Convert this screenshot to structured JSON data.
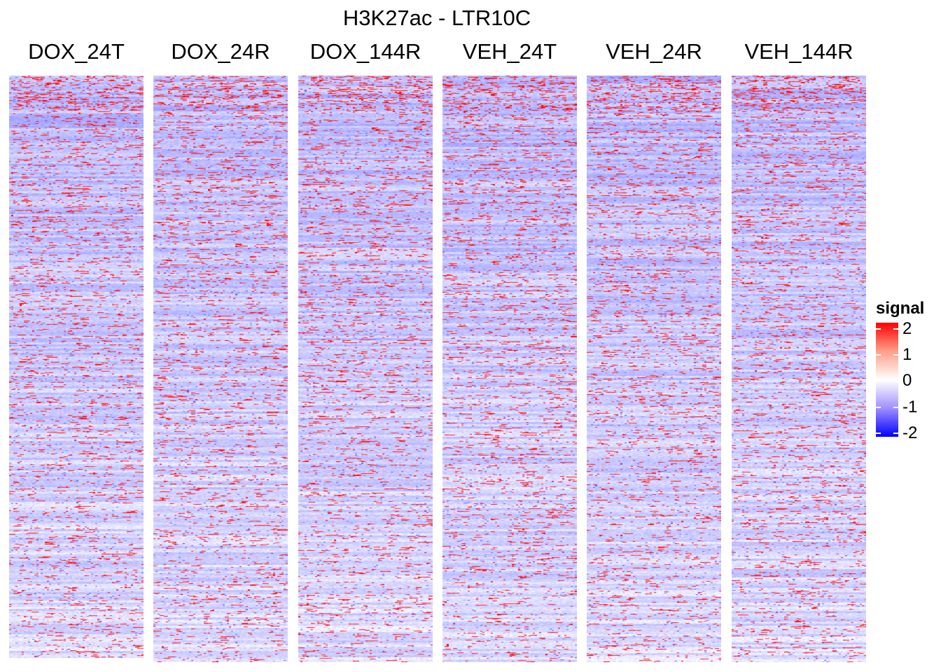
{
  "chart_data": {
    "type": "heatmap",
    "title": "H3K27ac - LTR10C",
    "panels": [
      {
        "label": "DOX_24T",
        "row_count": 832
      },
      {
        "label": "DOX_24R",
        "row_count": 838
      },
      {
        "label": "DOX_144R",
        "row_count": 838
      },
      {
        "label": "VEH_24T",
        "row_count": 838
      },
      {
        "label": "VEH_24R",
        "row_count": 838
      },
      {
        "label": "VEH_144R",
        "row_count": 838
      }
    ],
    "legend": {
      "title": "signal",
      "position": "right",
      "range": [
        -2,
        2
      ],
      "ticks": [
        "2",
        "1",
        "0",
        "-1",
        "-2"
      ],
      "colors": {
        "high": "#ff0000",
        "mid": "#ffffff",
        "low": "#0000ff"
      }
    },
    "baseline_color": "#cbc4f6"
  }
}
